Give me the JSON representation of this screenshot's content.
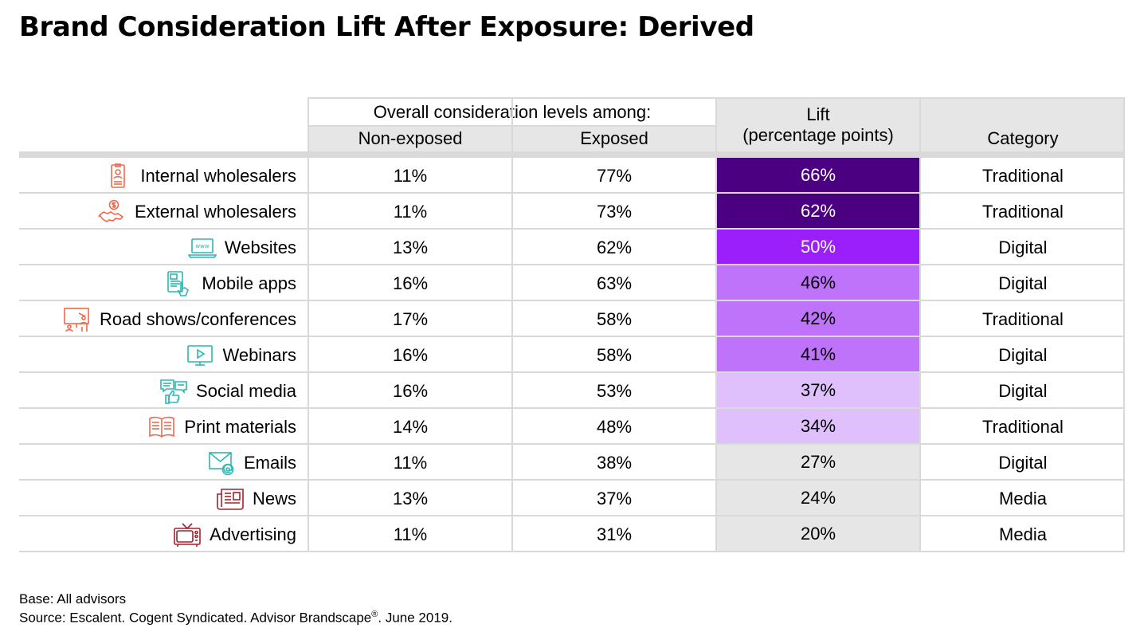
{
  "title": "Brand Consideration Lift After Exposure: Derived",
  "header": {
    "group_label": "Overall consideration levels among:",
    "col_nonexposed": "Non-exposed",
    "col_exposed": "Exposed",
    "col_lift_line1": "Lift",
    "col_lift_line2": "(percentage points)",
    "col_category": "Category"
  },
  "colors": {
    "dark_purple": "#4b0082",
    "bright_purple": "#9b1ffb",
    "mid_purple": "#bf72fa",
    "light_purple": "#dfc0fd",
    "gray": "#e6e6e6",
    "traditional_icon": "#ec6a4f",
    "digital_icon": "#2bb7b5",
    "media_icon": "#a6212b"
  },
  "chart_data": {
    "type": "table",
    "title": "Brand Consideration Lift After Exposure: Derived",
    "columns": [
      "",
      "Non-exposed",
      "Exposed",
      "Lift (percentage points)",
      "Category"
    ],
    "rows": [
      {
        "label": "Internal wholesalers",
        "icon": "id-badge-icon",
        "nonexposed": "11%",
        "exposed": "77%",
        "lift": "66%",
        "category": "Traditional",
        "lift_fill": "dark_purple",
        "lift_text_color": "#ffffff",
        "icon_color": "traditional_icon"
      },
      {
        "label": "External wholesalers",
        "icon": "handshake-dollar-icon",
        "nonexposed": "11%",
        "exposed": "73%",
        "lift": "62%",
        "category": "Traditional",
        "lift_fill": "dark_purple",
        "lift_text_color": "#ffffff",
        "icon_color": "traditional_icon"
      },
      {
        "label": "Websites",
        "icon": "laptop-www-icon",
        "nonexposed": "13%",
        "exposed": "62%",
        "lift": "50%",
        "category": "Digital",
        "lift_fill": "bright_purple",
        "lift_text_color": "#ffffff",
        "icon_color": "digital_icon"
      },
      {
        "label": "Mobile apps",
        "icon": "tablet-touch-icon",
        "nonexposed": "16%",
        "exposed": "63%",
        "lift": "46%",
        "category": "Digital",
        "lift_fill": "mid_purple",
        "lift_text_color": "#000000",
        "icon_color": "digital_icon"
      },
      {
        "label": "Road shows/conferences",
        "icon": "presentation-icon",
        "nonexposed": "17%",
        "exposed": "58%",
        "lift": "42%",
        "category": "Traditional",
        "lift_fill": "mid_purple",
        "lift_text_color": "#000000",
        "icon_color": "traditional_icon"
      },
      {
        "label": "Webinars",
        "icon": "video-screen-icon",
        "nonexposed": "16%",
        "exposed": "58%",
        "lift": "41%",
        "category": "Digital",
        "lift_fill": "mid_purple",
        "lift_text_color": "#000000",
        "icon_color": "digital_icon"
      },
      {
        "label": "Social media",
        "icon": "chat-thumbs-up-icon",
        "nonexposed": "16%",
        "exposed": "53%",
        "lift": "37%",
        "category": "Digital",
        "lift_fill": "light_purple",
        "lift_text_color": "#000000",
        "icon_color": "digital_icon"
      },
      {
        "label": "Print materials",
        "icon": "open-book-icon",
        "nonexposed": "14%",
        "exposed": "48%",
        "lift": "34%",
        "category": "Traditional",
        "lift_fill": "light_purple",
        "lift_text_color": "#000000",
        "icon_color": "traditional_icon"
      },
      {
        "label": "Emails",
        "icon": "envelope-at-icon",
        "nonexposed": "11%",
        "exposed": "38%",
        "lift": "27%",
        "category": "Digital",
        "lift_fill": "gray",
        "lift_text_color": "#000000",
        "icon_color": "digital_icon"
      },
      {
        "label": "News",
        "icon": "newspaper-icon",
        "nonexposed": "13%",
        "exposed": "37%",
        "lift": "24%",
        "category": "Media",
        "lift_fill": "gray",
        "lift_text_color": "#000000",
        "icon_color": "media_icon"
      },
      {
        "label": "Advertising",
        "icon": "television-icon",
        "nonexposed": "11%",
        "exposed": "31%",
        "lift": "20%",
        "category": "Media",
        "lift_fill": "gray",
        "lift_text_color": "#000000",
        "icon_color": "media_icon"
      }
    ]
  },
  "footer": {
    "base": "Base: All advisors",
    "source_prefix": "Source: Escalent. Cogent Syndicated. Advisor Brandscape",
    "source_mark": "®",
    "source_suffix": ". June 2019."
  }
}
